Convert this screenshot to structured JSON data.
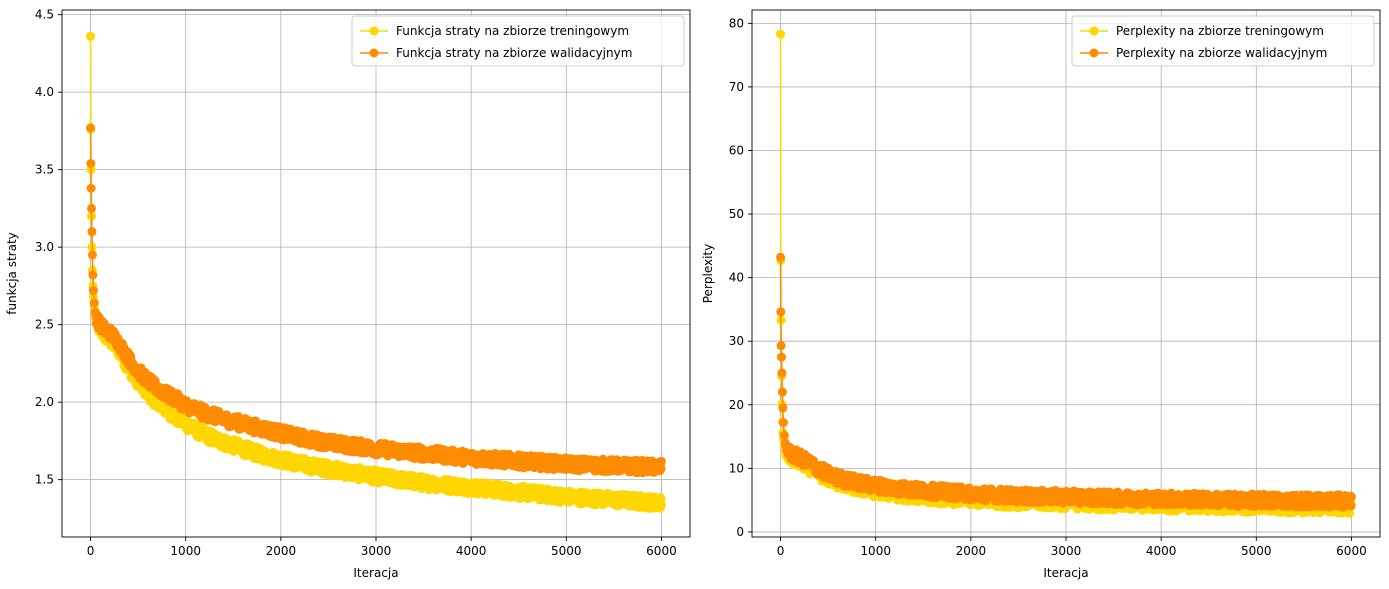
{
  "figure": {
    "background": "#ffffff"
  },
  "chart_data": [
    {
      "type": "line",
      "title": "",
      "xlabel": "Iteracja",
      "ylabel": "funkcja straty",
      "xlim": [
        -300,
        6300
      ],
      "ylim": [
        1.13,
        4.53
      ],
      "xticks": [
        0,
        1000,
        2000,
        3000,
        4000,
        5000,
        6000
      ],
      "yticks": [
        1.5,
        2.0,
        2.5,
        3.0,
        3.5,
        4.0,
        4.5
      ],
      "ytick_labels": [
        "1.5",
        "2.0",
        "2.5",
        "3.0",
        "3.5",
        "4.0",
        "4.5"
      ],
      "grid": true,
      "legend_position": "top-right",
      "markers": true,
      "series": [
        {
          "name": "Funkcja straty na zbiorze treningowym",
          "color": "#FFD700",
          "x": [
            0,
            3,
            6,
            10,
            15,
            20,
            25,
            30,
            40,
            50,
            60,
            80,
            100,
            150,
            200,
            250,
            300,
            400,
            500,
            600,
            700,
            800,
            900,
            1000,
            1200,
            1400,
            1600,
            1800,
            2000,
            2300,
            2600,
            3000,
            3500,
            4000,
            4500,
            5000,
            5500,
            6000
          ],
          "y": [
            4.36,
            3.76,
            3.5,
            3.2,
            3.0,
            2.85,
            2.75,
            2.68,
            2.6,
            2.55,
            2.52,
            2.49,
            2.47,
            2.43,
            2.4,
            2.37,
            2.33,
            2.22,
            2.13,
            2.06,
            2.0,
            1.95,
            1.9,
            1.86,
            1.79,
            1.74,
            1.7,
            1.66,
            1.63,
            1.59,
            1.56,
            1.52,
            1.48,
            1.45,
            1.42,
            1.39,
            1.37,
            1.35
          ]
        },
        {
          "name": "Funkcja straty na zbiorze walidacyjnym",
          "color": "#FF8C00",
          "x": [
            0,
            3,
            6,
            10,
            15,
            20,
            25,
            30,
            40,
            50,
            60,
            80,
            100,
            150,
            200,
            250,
            300,
            400,
            500,
            600,
            700,
            800,
            900,
            1000,
            1200,
            1400,
            1600,
            1800,
            2000,
            2300,
            2600,
            3000,
            3500,
            4000,
            4500,
            5000,
            5500,
            6000
          ],
          "y": [
            3.77,
            3.54,
            3.38,
            3.25,
            3.1,
            2.95,
            2.82,
            2.72,
            2.64,
            2.58,
            2.55,
            2.52,
            2.5,
            2.47,
            2.45,
            2.42,
            2.38,
            2.28,
            2.2,
            2.14,
            2.09,
            2.05,
            2.02,
            1.98,
            1.93,
            1.89,
            1.86,
            1.83,
            1.8,
            1.76,
            1.73,
            1.7,
            1.67,
            1.64,
            1.62,
            1.6,
            1.59,
            1.58
          ]
        }
      ]
    },
    {
      "type": "line",
      "title": "",
      "xlabel": "Iteracja",
      "ylabel": "Perplexity",
      "xlim": [
        -300,
        6300
      ],
      "ylim": [
        -0.8,
        82.1
      ],
      "xticks": [
        0,
        1000,
        2000,
        3000,
        4000,
        5000,
        6000
      ],
      "yticks": [
        0,
        10,
        20,
        30,
        40,
        50,
        60,
        70,
        80
      ],
      "ytick_labels": [
        "0",
        "10",
        "20",
        "30",
        "40",
        "50",
        "60",
        "70",
        "80"
      ],
      "grid": true,
      "legend_position": "top-right",
      "markers": true,
      "series": [
        {
          "name": "Perplexity na zbiorze treningowym",
          "color": "#FFD700",
          "x": [
            0,
            3,
            6,
            10,
            15,
            20,
            25,
            30,
            40,
            50,
            60,
            80,
            100,
            150,
            200,
            250,
            300,
            400,
            500,
            600,
            700,
            800,
            900,
            1000,
            1200,
            1400,
            1600,
            1800,
            2000,
            2300,
            2600,
            3000,
            3500,
            4000,
            4500,
            5000,
            5500,
            6000
          ],
          "y": [
            78.3,
            42.7,
            33.3,
            24.5,
            20.1,
            17.3,
            15.6,
            14.6,
            13.5,
            12.8,
            12.4,
            12.1,
            11.8,
            11.4,
            11.0,
            10.7,
            10.2,
            9.2,
            8.4,
            7.8,
            7.4,
            7.0,
            6.7,
            6.4,
            6.0,
            5.7,
            5.5,
            5.3,
            5.1,
            4.9,
            4.75,
            4.6,
            4.4,
            4.25,
            4.15,
            4.0,
            3.95,
            3.85
          ]
        },
        {
          "name": "Perplexity na zbiorze walidacyjnym",
          "color": "#FF8C00",
          "x": [
            0,
            3,
            6,
            10,
            15,
            20,
            25,
            30,
            40,
            50,
            60,
            80,
            100,
            150,
            200,
            250,
            300,
            400,
            500,
            600,
            700,
            800,
            900,
            1000,
            1200,
            1400,
            1600,
            1800,
            2000,
            2300,
            2600,
            3000,
            3500,
            4000,
            4500,
            5000,
            5500,
            6000
          ],
          "y": [
            43.2,
            34.6,
            29.3,
            27.5,
            25.0,
            22.0,
            19.5,
            17.2,
            15.2,
            14.0,
            13.3,
            12.8,
            12.4,
            12.0,
            11.7,
            11.3,
            10.9,
            9.9,
            9.1,
            8.5,
            8.1,
            7.8,
            7.5,
            7.3,
            6.9,
            6.6,
            6.4,
            6.2,
            6.0,
            5.8,
            5.6,
            5.5,
            5.3,
            5.2,
            5.05,
            4.95,
            4.9,
            4.85
          ]
        }
      ]
    }
  ]
}
